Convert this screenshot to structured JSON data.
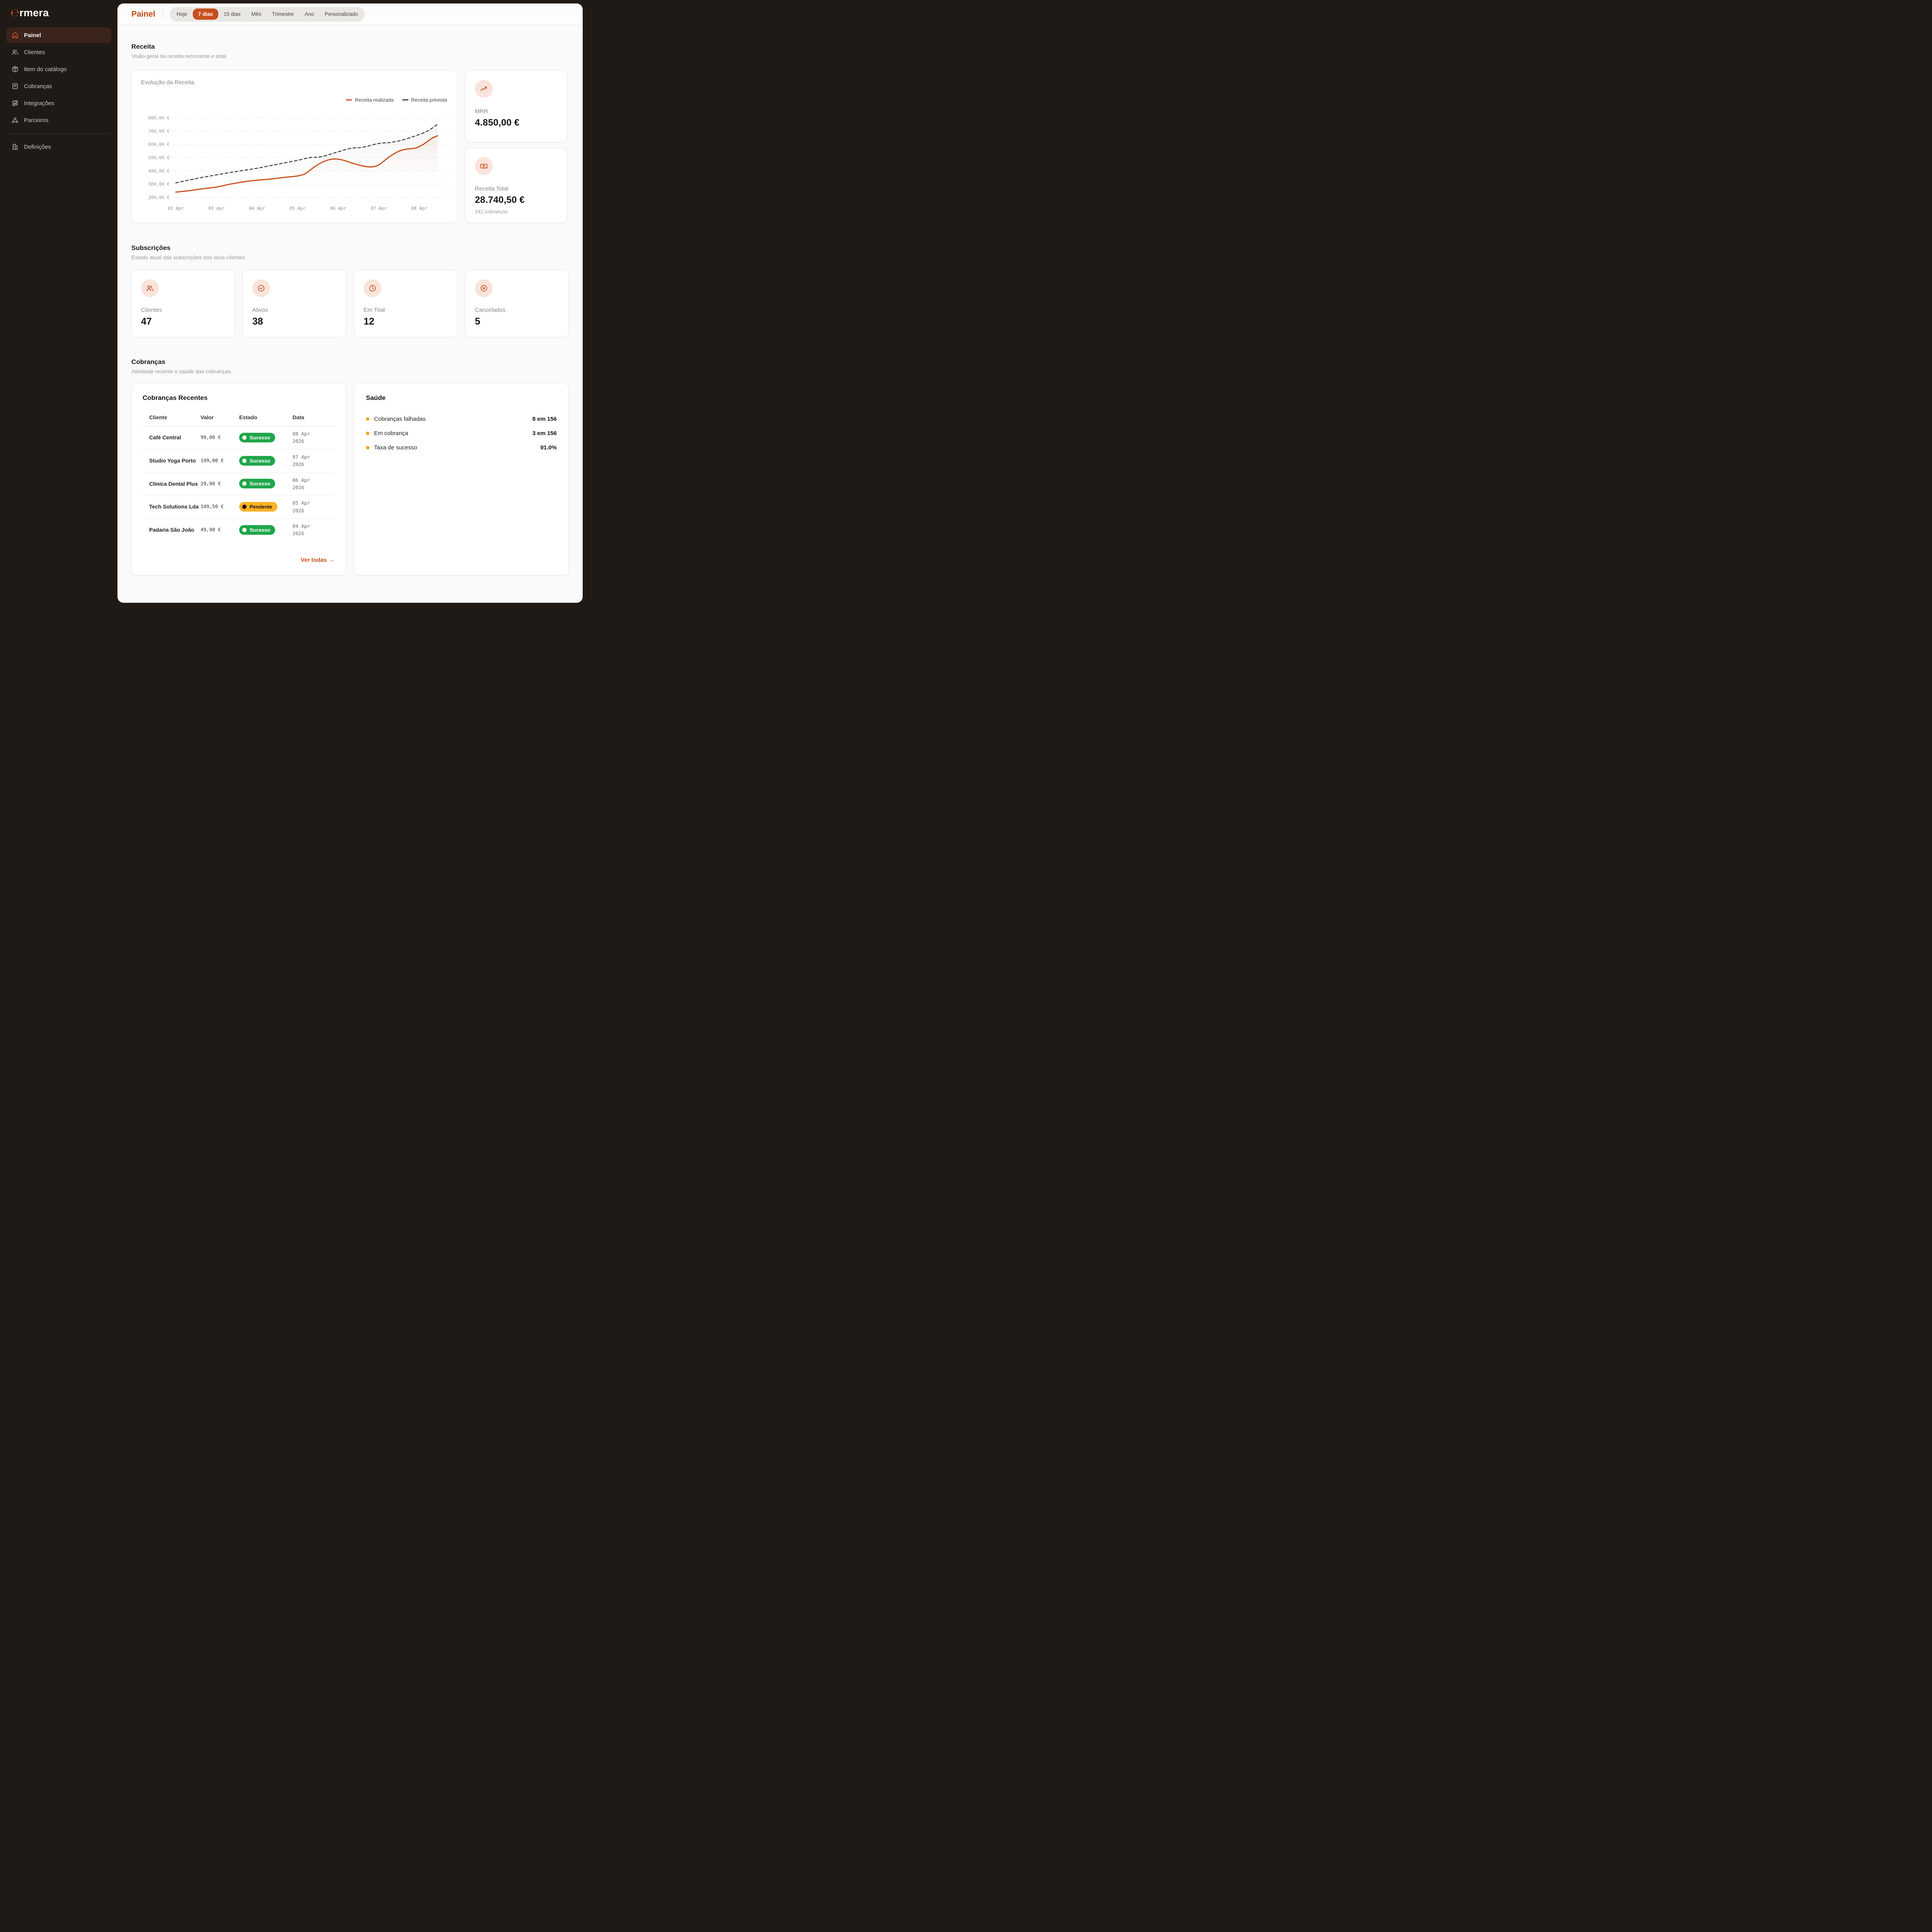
{
  "app": {
    "logo_mark": "℮",
    "logo_rest": "rmera"
  },
  "colors": {
    "accent": "#C7501F",
    "sidebar_bg": "#201A16",
    "active_item_bg": "#3A241B",
    "success": "#1FA64A",
    "pending": "#FFB224",
    "health_dot": "#F5A41F"
  },
  "sidebar": {
    "items": [
      {
        "label": "Painel",
        "icon": "home-icon",
        "active": true
      },
      {
        "label": "Clientes",
        "icon": "users-icon"
      },
      {
        "label": "Item do catálogo",
        "icon": "package-icon",
        "chevron": true
      },
      {
        "label": "Cobranças",
        "icon": "receipt-icon",
        "chevron": true
      },
      {
        "label": "Integrações",
        "icon": "puzzle-icon"
      },
      {
        "label": "Parceiros",
        "icon": "partners-icon"
      }
    ],
    "footer_item": {
      "label": "Definições",
      "icon": "building-icon"
    }
  },
  "header": {
    "title": "Painel",
    "tabs": [
      {
        "label": "Hoje"
      },
      {
        "label": "7 dias",
        "active": true
      },
      {
        "label": "15 dias"
      },
      {
        "label": "Mês"
      },
      {
        "label": "Trimestre"
      },
      {
        "label": "Ano"
      },
      {
        "label": "Personalizado"
      }
    ]
  },
  "receita": {
    "title": "Receita",
    "subtitle": "Visão geral da receita recorrente e total.",
    "chart_data": {
      "type": "line",
      "title": "Evolução da Receita",
      "grid": "dotted-horizontal",
      "legend_position": "top-right",
      "ylim": [
        200,
        800
      ],
      "y_ticks": [
        {
          "v": 800,
          "label": "800,00 €"
        },
        {
          "v": 700,
          "label": "700,00 €"
        },
        {
          "v": 600,
          "label": "600,00 €"
        },
        {
          "v": 500,
          "label": "500,00 €"
        },
        {
          "v": 400,
          "label": "400,00 €"
        },
        {
          "v": 300,
          "label": "300,00 €"
        },
        {
          "v": 200,
          "label": "200,00 €"
        }
      ],
      "categories": [
        "02 Apr",
        "03 Apr",
        "04 Apr",
        "05 Apr",
        "06 Apr",
        "07 Apr",
        "08 Apr"
      ],
      "series": [
        {
          "name": "Receita realizada",
          "color": "#C7511F",
          "style": "solid",
          "fill": "rgba(199,81,31,0.07)",
          "points": [
            [
              0,
              240
            ],
            [
              0.35,
              252
            ],
            [
              0.7,
              267
            ],
            [
              1,
              278
            ],
            [
              1.35,
              301
            ],
            [
              1.7,
              319
            ],
            [
              2,
              330
            ],
            [
              2.35,
              339
            ],
            [
              2.7,
              352
            ],
            [
              3,
              362
            ],
            [
              3.2,
              381
            ],
            [
              3.45,
              438
            ],
            [
              3.7,
              477
            ],
            [
              3.9,
              490
            ],
            [
              4.1,
              483
            ],
            [
              4.35,
              459
            ],
            [
              4.6,
              438
            ],
            [
              4.8,
              430
            ],
            [
              5,
              445
            ],
            [
              5.25,
              504
            ],
            [
              5.5,
              549
            ],
            [
              5.7,
              565
            ],
            [
              5.9,
              572
            ],
            [
              6.1,
              600
            ],
            [
              6.3,
              644
            ],
            [
              6.45,
              665
            ]
          ]
        },
        {
          "name": "Receita prevista",
          "color": "#444240",
          "style": "dashed",
          "fill": "rgba(120,115,110,0.09)",
          "points": [
            [
              0,
              310
            ],
            [
              0.5,
              342
            ],
            [
              1,
              370
            ],
            [
              1.5,
              396
            ],
            [
              2,
              420
            ],
            [
              2.5,
              450
            ],
            [
              3,
              480
            ],
            [
              3.3,
              500
            ],
            [
              3.6,
              508
            ],
            [
              4,
              544
            ],
            [
              4.3,
              570
            ],
            [
              4.6,
              578
            ],
            [
              5,
              607
            ],
            [
              5.3,
              615
            ],
            [
              5.6,
              634
            ],
            [
              5.9,
              664
            ],
            [
              6.2,
              700
            ],
            [
              6.45,
              752
            ]
          ]
        }
      ]
    }
  },
  "kpis": {
    "mrr": {
      "label": "MRR",
      "value": "4.850,00 €",
      "icon": "trending-up-icon"
    },
    "receita_total": {
      "label": "Receita Total",
      "value": "28.740,50 €",
      "sub": "142 cobranças",
      "icon": "banknote-icon"
    }
  },
  "subscricoes": {
    "title": "Subscrições",
    "subtitle": "Estado atual das subscrições dos seus clientes.",
    "cards": [
      {
        "label": "Clientes",
        "value": "47",
        "icon": "users-icon"
      },
      {
        "label": "Ativos",
        "value": "38",
        "icon": "check-circle-icon"
      },
      {
        "label": "Em Trial",
        "value": "12",
        "icon": "clock-icon"
      },
      {
        "label": "Cancelados",
        "value": "5",
        "icon": "x-circle-icon"
      }
    ]
  },
  "cobrancas": {
    "title": "Cobranças",
    "subtitle": "Atividade recente e saúde das cobranças.",
    "recentes": {
      "title": "Cobranças Recentes",
      "columns": [
        "Cliente",
        "Valor",
        "Estado",
        "Data"
      ],
      "rows": [
        {
          "cliente": "Café Central",
          "valor": "99,00 €",
          "estado": "Sucesso",
          "estado_tipo": "sucesso",
          "data_l1": "08 Apr",
          "data_l2": "2026"
        },
        {
          "cliente": "Studio Yoga Porto",
          "valor": "199,00 €",
          "estado": "Sucesso",
          "estado_tipo": "sucesso",
          "data_l1": "07 Apr",
          "data_l2": "2026"
        },
        {
          "cliente": "Clínica Dental Plus",
          "valor": "29,90 €",
          "estado": "Sucesso",
          "estado_tipo": "sucesso",
          "data_l1": "06 Apr",
          "data_l2": "2026"
        },
        {
          "cliente": "Tech Solutions Lda",
          "valor": "149,50 €",
          "estado": "Pendente",
          "estado_tipo": "pendente",
          "data_l1": "05 Apr",
          "data_l2": "2026"
        },
        {
          "cliente": "Padaria São João",
          "valor": "49,90 €",
          "estado": "Sucesso",
          "estado_tipo": "sucesso",
          "data_l1": "04 Apr",
          "data_l2": "2026"
        }
      ],
      "link": "Ver todas →"
    },
    "saude": {
      "title": "Saúde",
      "rows": [
        {
          "label": "Cobranças falhadas",
          "value": "8 em 156"
        },
        {
          "label": "Em cobrança",
          "value": "3 em 156"
        },
        {
          "label": "Taxa de sucesso",
          "value": "91.0%"
        }
      ]
    }
  }
}
